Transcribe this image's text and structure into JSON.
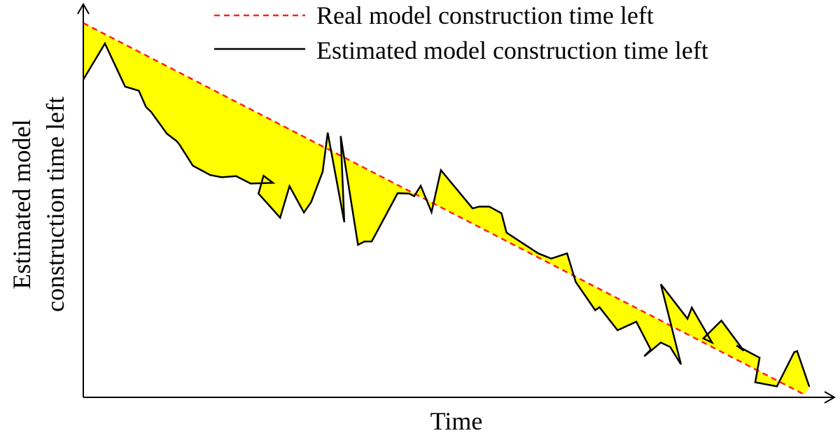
{
  "chart_data": {
    "type": "line",
    "xlabel": "Time",
    "ylabel_lines": [
      "Estimated model",
      "construction time left"
    ],
    "xlim": [
      0,
      1
    ],
    "ylim": [
      0,
      1
    ],
    "grid": false,
    "legend_position": "top-right",
    "colors": {
      "real": "#ff2020",
      "estimated": "#000000",
      "fill": "#ffff00"
    },
    "series": [
      {
        "name": "Real model construction time left",
        "style": "dashed",
        "x": [
          0,
          1
        ],
        "y": [
          1,
          0
        ]
      },
      {
        "name": "Estimated model construction time left",
        "style": "solid",
        "x": [
          0,
          0.03,
          0.058,
          0.077,
          0.087,
          0.094,
          0.116,
          0.129,
          0.133,
          0.152,
          0.176,
          0.192,
          0.212,
          0.232,
          0.263,
          0.25,
          0.243,
          0.273,
          0.286,
          0.306,
          0.316,
          0.332,
          0.339,
          0.362,
          0.357,
          0.381,
          0.39,
          0.4,
          0.436,
          0.452,
          0.459,
          0.468,
          0.483,
          0.496,
          0.54,
          0.549,
          0.563,
          0.58,
          0.587,
          0.601,
          0.631,
          0.649,
          0.671,
          0.683,
          0.71,
          0.716,
          0.741,
          0.767,
          0.787,
          0.778,
          0.801,
          0.814,
          0.829,
          0.801,
          0.838,
          0.844,
          0.872,
          0.86,
          0.885,
          0.916,
          0.906,
          0.938,
          0.932,
          0.962,
          0.986,
          0.99,
          1.007
        ],
        "y": [
          0.848,
          0.945,
          0.829,
          0.818,
          0.774,
          0.761,
          0.702,
          0.683,
          0.674,
          0.616,
          0.591,
          0.585,
          0.588,
          0.568,
          0.57,
          0.589,
          0.541,
          0.476,
          0.561,
          0.49,
          0.518,
          0.6,
          0.705,
          0.464,
          0.696,
          0.403,
          0.412,
          0.412,
          0.542,
          0.541,
          0.534,
          0.562,
          0.491,
          0.604,
          0.501,
          0.506,
          0.506,
          0.488,
          0.436,
          0.418,
          0.38,
          0.366,
          0.38,
          0.303,
          0.227,
          0.235,
          0.173,
          0.196,
          0.121,
          0.103,
          0.14,
          0.128,
          0.081,
          0.297,
          0.204,
          0.234,
          0.14,
          0.151,
          0.199,
          0.118,
          0.132,
          0.099,
          0.033,
          0.022,
          0.114,
          0.117,
          0.021
        ]
      }
    ]
  }
}
